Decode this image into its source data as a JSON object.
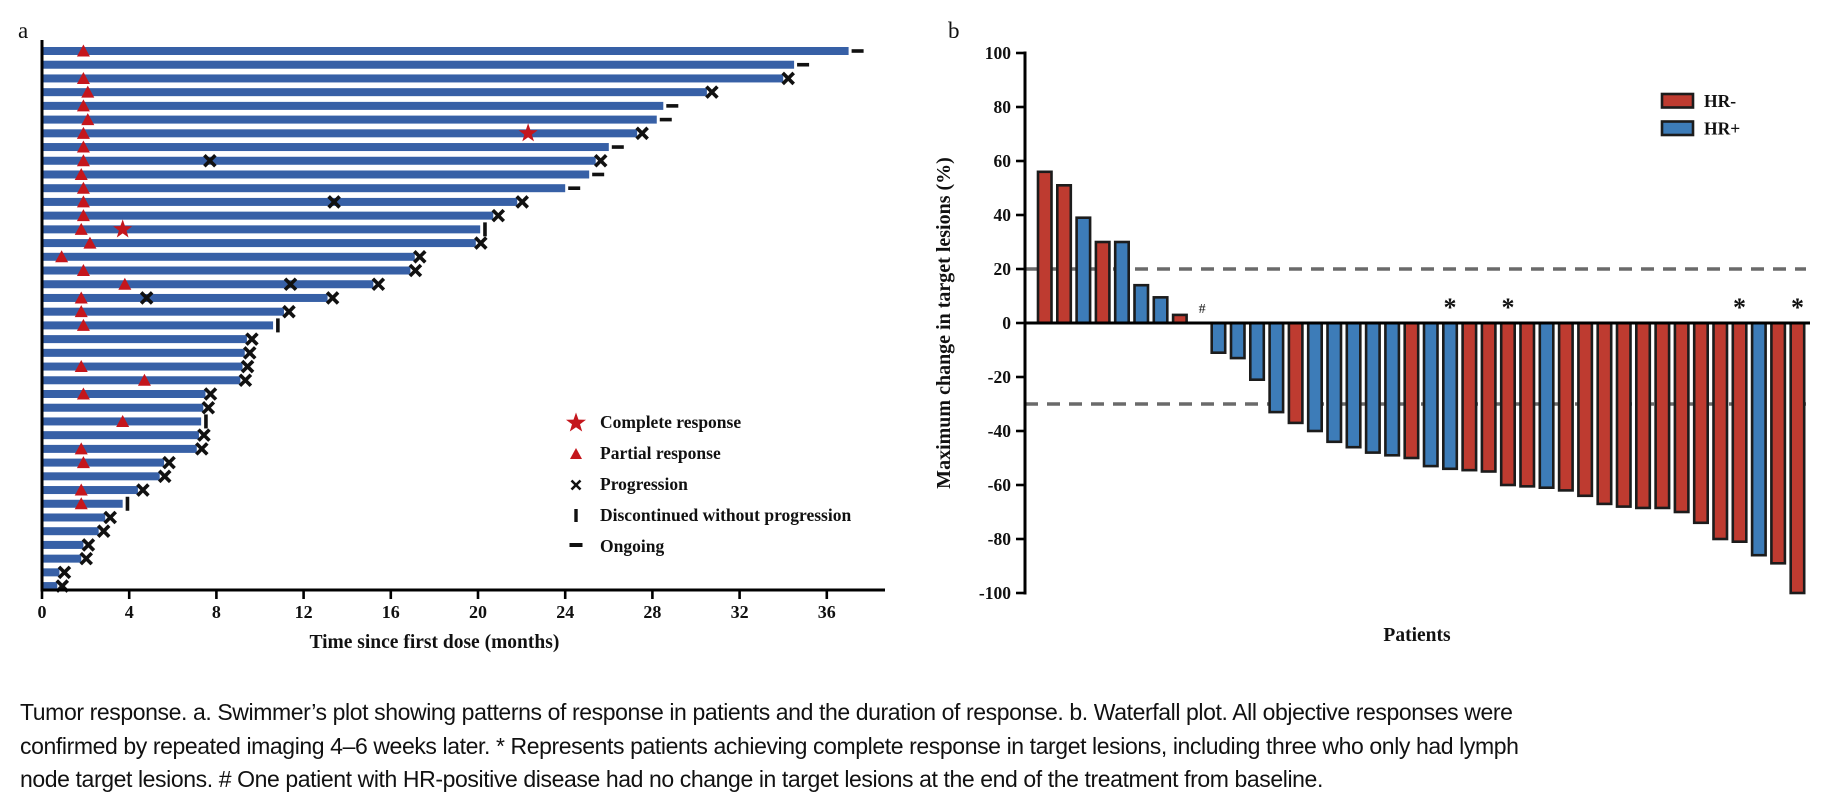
{
  "figure": {
    "panel_a_label": "a",
    "panel_b_label": "b"
  },
  "caption": {
    "lines": [
      "Tumor response. a. Swimmer’s plot showing patterns of response in patients and the duration of response. b. Waterfall plot. All objective responses were",
      "confirmed by repeated imaging 4–6 weeks later. * Represents patients achieving complete response in target lesions, including three who only had lymph",
      "node target lesions. # One patient with HR-positive disease had no change in target lesions at the end of the treatment from baseline."
    ]
  },
  "chart_data": [
    {
      "type": "bar",
      "subtype": "swimmer",
      "panel": "a",
      "xlabel": "Time since first dose (months)",
      "xlim": [
        0,
        38.5
      ],
      "xticks": [
        0,
        4,
        8,
        12,
        16,
        20,
        24,
        28,
        32,
        36
      ],
      "grid": false,
      "bar_color": "#3760A6",
      "marker_red": "#C4161C",
      "marker_black": "#111111",
      "legend_position": "lower right inside",
      "legend": [
        {
          "symbol": "star",
          "label": "Complete response"
        },
        {
          "symbol": "triangle",
          "label": "Partial response"
        },
        {
          "symbol": "x",
          "label": "Progression"
        },
        {
          "symbol": "vbar",
          "label": "Discontinued without progression"
        },
        {
          "symbol": "dash",
          "label": "Ongoing"
        }
      ],
      "patients": [
        {
          "duration": 37.0,
          "end": "ongoing",
          "pr": 1.9
        },
        {
          "duration": 34.5,
          "end": "ongoing"
        },
        {
          "duration": 34.0,
          "end": "progression",
          "pr": 1.9
        },
        {
          "duration": 30.5,
          "end": "progression",
          "pr": 2.1
        },
        {
          "duration": 28.5,
          "end": "ongoing",
          "pr": 1.9
        },
        {
          "duration": 28.2,
          "end": "ongoing",
          "pr": 2.1
        },
        {
          "duration": 27.3,
          "end": "progression",
          "pr": 1.9,
          "cr": 22.3
        },
        {
          "duration": 26.0,
          "end": "ongoing",
          "pr": 1.9
        },
        {
          "duration": 25.4,
          "end": "progression",
          "pr": 1.9,
          "mid_x": [
            7.7
          ]
        },
        {
          "duration": 25.1,
          "end": "ongoing",
          "pr": 1.8
        },
        {
          "duration": 24.0,
          "end": "ongoing",
          "pr": 1.9
        },
        {
          "duration": 21.8,
          "end": "progression",
          "pr": 1.9,
          "mid_x": [
            13.4
          ]
        },
        {
          "duration": 20.7,
          "end": "progression",
          "pr": 1.9
        },
        {
          "duration": 20.1,
          "end": "discontinued",
          "pr": 1.8,
          "cr": 3.7
        },
        {
          "duration": 19.9,
          "end": "progression",
          "pr": 2.2
        },
        {
          "duration": 17.1,
          "end": "progression",
          "pr": 0.9
        },
        {
          "duration": 16.9,
          "end": "progression",
          "pr": 1.9
        },
        {
          "duration": 15.2,
          "end": "progression",
          "pr": 3.8,
          "mid_x": [
            11.4
          ]
        },
        {
          "duration": 13.1,
          "end": "progression",
          "pr": 1.8,
          "mid_x": [
            4.8
          ]
        },
        {
          "duration": 11.1,
          "end": "progression",
          "pr": 1.8
        },
        {
          "duration": 10.6,
          "end": "discontinued",
          "pr": 1.9
        },
        {
          "duration": 9.4,
          "end": "progression"
        },
        {
          "duration": 9.3,
          "end": "progression"
        },
        {
          "duration": 9.2,
          "end": "progression",
          "pr": 1.8
        },
        {
          "duration": 9.1,
          "end": "progression",
          "pr": 4.7
        },
        {
          "duration": 7.5,
          "end": "progression",
          "pr": 1.9
        },
        {
          "duration": 7.4,
          "end": "progression"
        },
        {
          "duration": 7.3,
          "end": "discontinued",
          "pr": 3.7
        },
        {
          "duration": 7.2,
          "end": "progression"
        },
        {
          "duration": 7.1,
          "end": "progression",
          "pr": 1.8
        },
        {
          "duration": 5.6,
          "end": "progression",
          "pr": 1.9
        },
        {
          "duration": 5.4,
          "end": "progression"
        },
        {
          "duration": 4.4,
          "end": "progression",
          "pr": 1.8
        },
        {
          "duration": 3.7,
          "end": "discontinued",
          "pr": 1.8
        },
        {
          "duration": 2.9,
          "end": "progression"
        },
        {
          "duration": 2.6,
          "end": "progression"
        },
        {
          "duration": 1.9,
          "end": "progression"
        },
        {
          "duration": 1.8,
          "end": "progression"
        },
        {
          "duration": 0.8,
          "end": "progression"
        },
        {
          "duration": 0.7,
          "end": "progression"
        }
      ]
    },
    {
      "type": "bar",
      "subtype": "waterfall",
      "panel": "b",
      "ylabel": "Maximum change in target lesions (%)",
      "xlabel": "Patients",
      "ylim": [
        -100,
        100
      ],
      "yticks": [
        100,
        80,
        60,
        40,
        20,
        0,
        -20,
        -40,
        -60,
        -80,
        -100
      ],
      "reference_lines": [
        20,
        -30
      ],
      "reference_line_color": "#6A6A6A",
      "grid": false,
      "legend_position": "upper right inside",
      "legend": [
        {
          "label": "HR-",
          "color": "#BE3B30"
        },
        {
          "label": "HR+",
          "color": "#3D7CB8"
        }
      ],
      "group_colors": {
        "HR-": "#BE3B30",
        "HR+": "#3D7CB8"
      },
      "values": [
        56,
        51,
        39,
        30,
        30,
        14,
        9.5,
        3,
        0,
        -11,
        -13,
        -21,
        -33,
        -37,
        -40,
        -44,
        -46,
        -48,
        -49,
        -50,
        -53,
        -54,
        -54.5,
        -55,
        -60,
        -60.5,
        -61,
        -62,
        -64,
        -67,
        -68,
        -68.5,
        -68.5,
        -70,
        -74,
        -80,
        -81,
        -86,
        -89,
        -100
      ],
      "groups": [
        "HR-",
        "HR-",
        "HR+",
        "HR-",
        "HR+",
        "HR+",
        "HR+",
        "HR-",
        "HR+",
        "HR+",
        "HR+",
        "HR+",
        "HR+",
        "HR-",
        "HR+",
        "HR+",
        "HR+",
        "HR+",
        "HR+",
        "HR-",
        "HR+",
        "HR+",
        "HR-",
        "HR-",
        "HR-",
        "HR-",
        "HR+",
        "HR-",
        "HR-",
        "HR-",
        "HR-",
        "HR-",
        "HR-",
        "HR-",
        "HR-",
        "HR-",
        "HR-",
        "HR+",
        "HR-",
        "HR-"
      ],
      "annotations": {
        "hash_symbol": "#",
        "hash_index": 8,
        "star_symbol": "*",
        "star_indices": [
          21,
          24,
          36,
          39
        ]
      }
    }
  ]
}
